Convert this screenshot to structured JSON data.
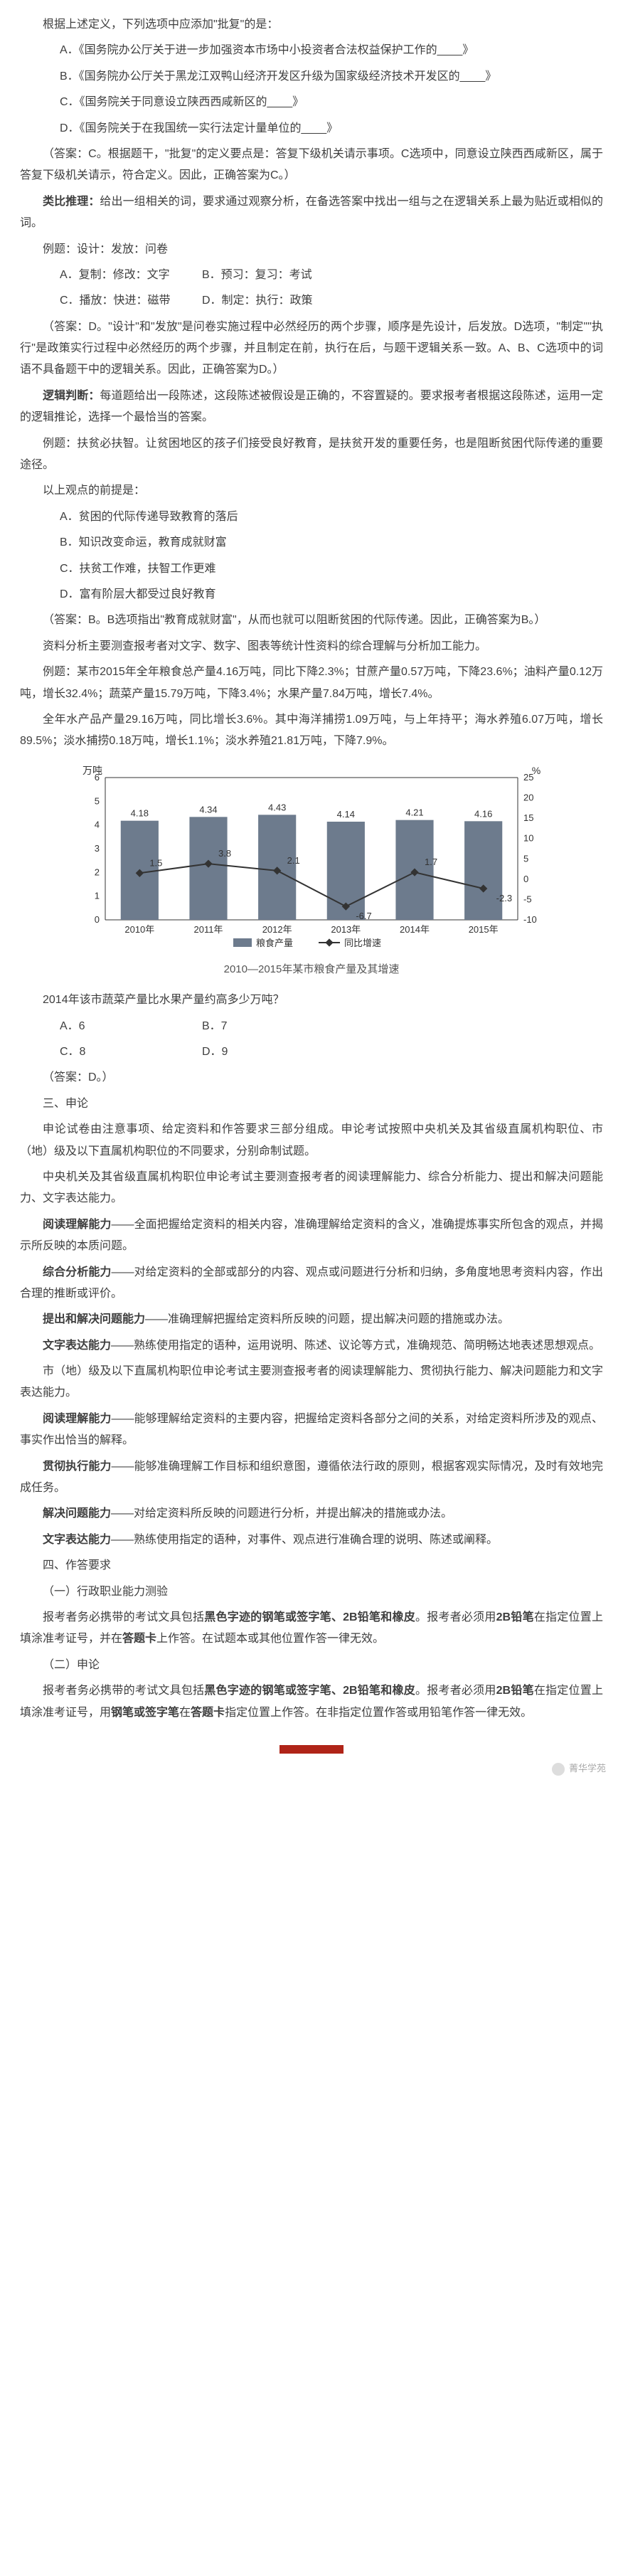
{
  "p1": "根据上述定义，下列选项中应添加\"批复\"的是：",
  "q1a": "A．《国务院办公厅关于进一步加强资本市场中小投资者合法权益保护工作的____》",
  "q1b": "B．《国务院办公厅关于黑龙江双鸭山经济开发区升级为国家级经济技术开发区的____》",
  "q1c": "C．《国务院关于同意设立陕西西咸新区的____》",
  "q1d": "D．《国务院关于在我国统一实行法定计量单位的____》",
  "ans1": "（答案：C。根据题干，\"批复\"的定义要点是：答复下级机关请示事项。C选项中，同意设立陕西西咸新区，属于答复下级机关请示，符合定义。因此，正确答案为C。）",
  "leitui_label": "类比推理：",
  "leitui_body": "给出一组相关的词，要求通过观察分析，在备选答案中找出一组与之在逻辑关系上最为贴近或相似的词。",
  "liti2": "例题：设计：发放：问卷",
  "q2a": "A．复制：修改：文字",
  "q2b": "B．预习：复习：考试",
  "q2c": "C．播放：快进：磁带",
  "q2d": "D．制定：执行：政策",
  "ans2": "（答案：D。\"设计\"和\"发放\"是问卷实施过程中必然经历的两个步骤，顺序是先设计，后发放。D选项，\"制定\"\"执行\"是政策实行过程中必然经历的两个步骤，并且制定在前，执行在后，与题干逻辑关系一致。A、B、C选项中的词语不具备题干中的逻辑关系。因此，正确答案为D。）",
  "luoji_label": "逻辑判断：",
  "luoji_body": "每道题给出一段陈述，这段陈述被假设是正确的，不容置疑的。要求报考者根据这段陈述，运用一定的逻辑推论，选择一个最恰当的答案。",
  "liti3": "例题：扶贫必扶智。让贫困地区的孩子们接受良好教育，是扶贫开发的重要任务，也是阻断贫困代际传递的重要途径。",
  "q3stem": "以上观点的前提是：",
  "q3a": "A．贫困的代际传递导致教育的落后",
  "q3b": "B．知识改变命运，教育成就财富",
  "q3c": "C．扶贫工作难，扶智工作更难",
  "q3d": "D．富有阶层大都受过良好教育",
  "ans3": "（答案：B。B选项指出\"教育成就财富\"，从而也就可以阻断贫困的代际传递。因此，正确答案为B。）",
  "ziliao": "资料分析主要测查报考者对文字、数字、图表等统计性资料的综合理解与分析加工能力。",
  "liti4": "例题：某市2015年全年粮食总产量4.16万吨，同比下降2.3%；甘蔗产量0.57万吨，下降23.6%；油料产量0.12万吨，增长32.4%；蔬菜产量15.79万吨，下降3.4%；水果产量7.84万吨，增长7.4%。",
  "liti4b": "全年水产品产量29.16万吨，同比增长3.6%。其中海洋捕捞1.09万吨，与上年持平；海水养殖6.07万吨，增长89.5%；淡水捕捞0.18万吨，增长1.1%；淡水养殖21.81万吨，下降7.9%。",
  "chart": {
    "y_label_left": "万吨",
    "y_ticks_left": [
      "6",
      "5",
      "4",
      "3",
      "2",
      "1",
      "0"
    ],
    "y_ticks_right": [
      "%",
      "25",
      "20",
      "15",
      "10",
      "5",
      "0",
      "-5",
      "-10"
    ],
    "x_ticks": [
      "2010年",
      "2011年",
      "2012年",
      "2013年",
      "2014年",
      "2015年"
    ],
    "bars": [
      4.18,
      4.34,
      4.43,
      4.14,
      4.21,
      4.16
    ],
    "bar_labels": [
      "4.18",
      "4.34",
      "4.43",
      "4.14",
      "4.21",
      "4.16"
    ],
    "line": [
      1.5,
      3.8,
      2.1,
      -6.7,
      1.7,
      -2.3
    ],
    "line_labels": [
      "1.5",
      "3.8",
      "2.1",
      "-6.7",
      "1.7",
      "-2.3"
    ],
    "legend1": "粮食产量",
    "legend2": "同比增速",
    "bar_color": "#6d7b8d",
    "line_color": "#333333",
    "title": "2010—2015年某市粮食产量及其增速"
  },
  "q4": "2014年该市蔬菜产量比水果产量约高多少万吨？",
  "q4a": "A．6",
  "q4b": "B．7",
  "q4c": "C．8",
  "q4d": "D．9",
  "ans4": "（答案：D。）",
  "sec3": "三、申论",
  "sl1": "申论试卷由注意事项、给定资料和作答要求三部分组成。申论考试按照中央机关及其省级直属机构职位、市（地）级及以下直属机构职位的不同要求，分别命制试题。",
  "sl2": "中央机关及其省级直属机构职位申论考试主要测查报考者的阅读理解能力、综合分析能力、提出和解决问题能力、文字表达能力。",
  "a1l": "阅读理解能力",
  "a1b": "——全面把握给定资料的相关内容，准确理解给定资料的含义，准确提炼事实所包含的观点，并揭示所反映的本质问题。",
  "a2l": "综合分析能力",
  "a2b": "——对给定资料的全部或部分的内容、观点或问题进行分析和归纳，多角度地思考资料内容，作出合理的推断或评价。",
  "a3l": "提出和解决问题能力",
  "a3b": "——准确理解把握给定资料所反映的问题，提出解决问题的措施或办法。",
  "a4l": "文字表达能力",
  "a4b": "——熟练使用指定的语种，运用说明、陈述、议论等方式，准确规范、简明畅达地表述思想观点。",
  "sl3": "市（地）级及以下直属机构职位申论考试主要测查报考者的阅读理解能力、贯彻执行能力、解决问题能力和文字表达能力。",
  "b1l": "阅读理解能力",
  "b1b": "——能够理解给定资料的主要内容，把握给定资料各部分之间的关系，对给定资料所涉及的观点、事实作出恰当的解释。",
  "b2l": "贯彻执行能力",
  "b2b": "——能够准确理解工作目标和组织意图，遵循依法行政的原则，根据客观实际情况，及时有效地完成任务。",
  "b3l": "解决问题能力",
  "b3b": "——对给定资料所反映的问题进行分析，并提出解决的措施或办法。",
  "b4l": "文字表达能力",
  "b4b": "——熟练使用指定的语种，对事件、观点进行准确合理的说明、陈述或阐释。",
  "sec4": "四、作答要求",
  "sec4a": "（一）行政职业能力测验",
  "sl4": "报考者务必携带的考试文具包括",
  "sl4b": "黑色字迹的钢笔或签字笔、2B铅笔和橡皮",
  "sl4c": "。报考者必须用",
  "sl4d": "2B铅笔",
  "sl4e": "在指定位置上填涂准考证号，并在",
  "sl4f": "答题卡",
  "sl4g": "上作答。在试题本或其他位置作答一律无效。",
  "sec4b": "（二）申论",
  "sl5": "报考者务必携带的考试文具包括",
  "sl5b": "黑色字迹的钢笔或签字笔、2B铅笔和橡皮",
  "sl5c": "。报考者必须用",
  "sl5d": "2B铅笔",
  "sl5e": "在指定位置上填涂准考证号，用",
  "sl5f": "钢笔或签字笔",
  "sl5g": "在",
  "sl5h": "答题卡",
  "sl5i": "指定位置上作答。在非指定位置作答或用铅笔作答一律无效。",
  "brand": "菁华学苑"
}
